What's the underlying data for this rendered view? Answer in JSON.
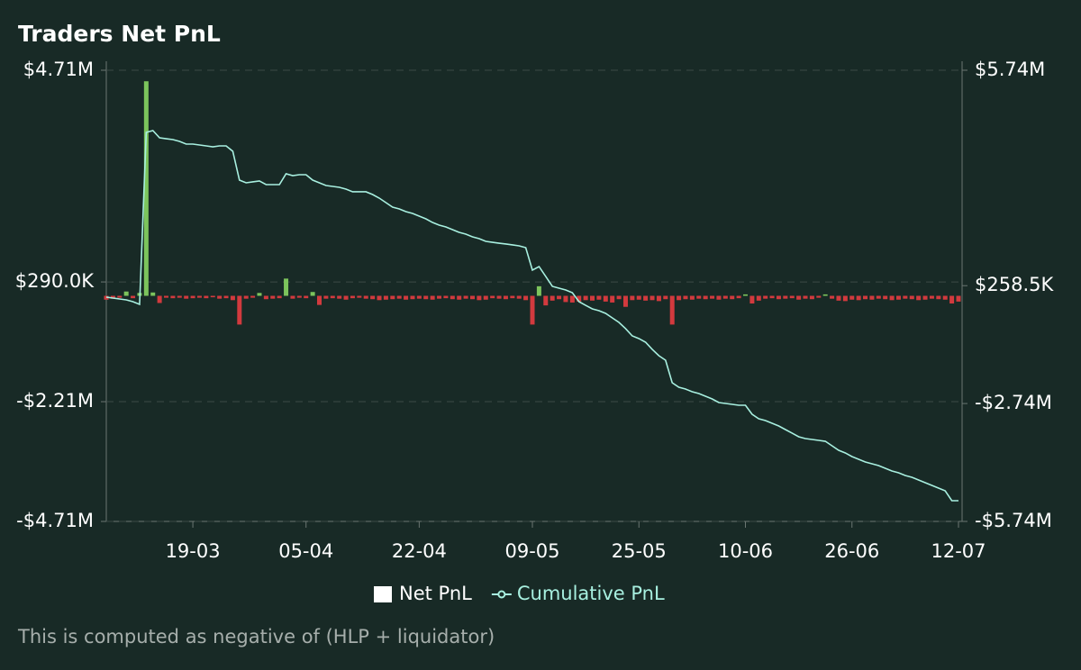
{
  "chart_data": {
    "type": "bar_line",
    "title": "Traders Net PnL",
    "footnote": "This is computed as negative of (HLP + liquidator)",
    "categories": [
      null,
      null,
      null,
      null,
      null,
      null,
      null,
      null,
      null,
      null,
      null,
      null,
      null,
      "19-03",
      null,
      null,
      null,
      null,
      null,
      null,
      null,
      null,
      null,
      null,
      null,
      null,
      null,
      null,
      null,
      null,
      "05-04",
      null,
      null,
      null,
      null,
      null,
      null,
      null,
      null,
      null,
      null,
      null,
      null,
      null,
      null,
      null,
      null,
      "22-04",
      null,
      null,
      null,
      null,
      null,
      null,
      null,
      null,
      null,
      null,
      null,
      null,
      null,
      null,
      null,
      null,
      "09-05",
      null,
      null,
      null,
      null,
      null,
      null,
      null,
      null,
      null,
      null,
      null,
      null,
      null,
      null,
      null,
      "25-05",
      null,
      null,
      null,
      null,
      null,
      null,
      null,
      null,
      null,
      null,
      null,
      null,
      null,
      null,
      null,
      "10-06",
      null,
      null,
      null,
      null,
      null,
      null,
      null,
      null,
      null,
      null,
      null,
      null,
      null,
      null,
      null,
      "26-06",
      null,
      null,
      null,
      null,
      null,
      null,
      null,
      null,
      null,
      null,
      null,
      null,
      null,
      null,
      null,
      "12-07"
    ],
    "series": [
      {
        "name": "Net PnL",
        "kind": "bar",
        "color": "#ffffff",
        "positive_color": "#7cc45c",
        "negative_color": "#d23a3e",
        "values": [
          -80000,
          -60000,
          -40000,
          90000,
          -50000,
          60000,
          4480000,
          70000,
          -150000,
          -40000,
          -50000,
          -40000,
          -60000,
          -50000,
          -40000,
          -50000,
          -30000,
          -60000,
          -50000,
          -90000,
          -600000,
          -60000,
          -40000,
          60000,
          -70000,
          -60000,
          -50000,
          360000,
          -60000,
          -40000,
          -50000,
          80000,
          -190000,
          -60000,
          -50000,
          -60000,
          -80000,
          -50000,
          -40000,
          -60000,
          -70000,
          -90000,
          -80000,
          -70000,
          -60000,
          -80000,
          -70000,
          -60000,
          -70000,
          -80000,
          -60000,
          -50000,
          -70000,
          -80000,
          -60000,
          -70000,
          -90000,
          -80000,
          -50000,
          -60000,
          -70000,
          -50000,
          -60000,
          -90000,
          -600000,
          200000,
          -200000,
          -100000,
          -70000,
          -130000,
          -140000,
          -120000,
          -90000,
          -100000,
          -80000,
          -120000,
          -140000,
          -70000,
          -230000,
          -90000,
          -80000,
          -100000,
          -90000,
          -110000,
          -70000,
          -600000,
          -90000,
          -70000,
          -80000,
          -60000,
          -70000,
          -60000,
          -80000,
          -60000,
          -70000,
          -50000,
          30000,
          -160000,
          -100000,
          -60000,
          -50000,
          -70000,
          -60000,
          -50000,
          -80000,
          -60000,
          -70000,
          -40000,
          30000,
          -60000,
          -100000,
          -110000,
          -80000,
          -90000,
          -70000,
          -80000,
          -60000,
          -70000,
          -90000,
          -80000,
          -60000,
          -70000,
          -90000,
          -80000,
          -60000,
          -70000,
          -80000,
          -160000,
          -120000
        ]
      },
      {
        "name": "Cumulative PnL",
        "kind": "line",
        "axis": "y2",
        "color": "#a8f0e0",
        "values": [
          -34000,
          -57000,
          -80000,
          -103000,
          -149000,
          -218000,
          4159000,
          4205000,
          4021000,
          3998000,
          3976000,
          3930000,
          3861000,
          3861000,
          3838000,
          3815000,
          3792000,
          3815000,
          3815000,
          3678000,
          2944000,
          2876000,
          2899000,
          2922000,
          2830000,
          2830000,
          2830000,
          3105000,
          3059000,
          3082000,
          3082000,
          2944000,
          2876000,
          2807000,
          2784000,
          2761000,
          2715000,
          2647000,
          2647000,
          2647000,
          2578000,
          2486000,
          2372000,
          2257000,
          2211000,
          2142000,
          2097000,
          2028000,
          1959000,
          1867000,
          1799000,
          1753000,
          1684000,
          1615000,
          1570000,
          1501000,
          1455000,
          1386000,
          1363000,
          1340000,
          1318000,
          1295000,
          1272000,
          1226000,
          653000,
          745000,
          493000,
          241000,
          195000,
          149000,
          80000,
          -149000,
          -241000,
          -332000,
          -378000,
          -447000,
          -561000,
          -676000,
          -836000,
          -1020000,
          -1088000,
          -1180000,
          -1363000,
          -1524000,
          -1638000,
          -2211000,
          -2326000,
          -2372000,
          -2440000,
          -2486000,
          -2555000,
          -2624000,
          -2715000,
          -2738000,
          -2761000,
          -2784000,
          -2784000,
          -3013000,
          -3128000,
          -3174000,
          -3242000,
          -3311000,
          -3403000,
          -3494000,
          -3586000,
          -3632000,
          -3655000,
          -3678000,
          -3701000,
          -3815000,
          -3930000,
          -3998000,
          -4090000,
          -4159000,
          -4228000,
          -4273000,
          -4319000,
          -4388000,
          -4457000,
          -4503000,
          -4571000,
          -4617000,
          -4686000,
          -4755000,
          -4823000,
          -4892000,
          -4961000,
          -5213000,
          -5213000
        ]
      }
    ],
    "ylim": [
      -4710000,
      4710000
    ],
    "yticks": [
      {
        "value": 4710000,
        "label": "$4.71M"
      },
      {
        "value": 290000,
        "label": "$290.0K"
      },
      {
        "value": -2210000,
        "label": "-$2.21M"
      },
      {
        "value": -4710000,
        "label": "-$4.71M"
      }
    ],
    "y2lim": [
      -5740000,
      5740000
    ],
    "y2ticks": [
      {
        "value": 5740000,
        "label": "$5.74M"
      },
      {
        "value": 258500,
        "label": "$258.5K"
      },
      {
        "value": -2740000,
        "label": "-$2.74M"
      },
      {
        "value": -5740000,
        "label": "-$5.74M"
      }
    ],
    "grid": true,
    "legend": "bottom"
  }
}
